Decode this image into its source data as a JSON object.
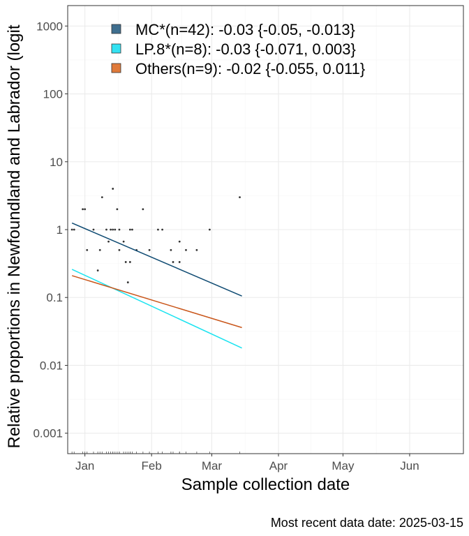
{
  "chart_data": {
    "type": "scatter",
    "xlabel": "Sample collection date",
    "ylabel": "Relative proportions in Newfoundland and Labrador (logit",
    "caption": "Most recent data date: 2025-03-15",
    "y_scale": "log10",
    "ylim": [
      0.0005,
      2000
    ],
    "xlim": [
      "2024-12-24",
      "2025-06-26"
    ],
    "grid": true,
    "legend_position": "top-left-inside",
    "x_ticks": [
      {
        "date": "2025-01-01",
        "label": "Jan"
      },
      {
        "date": "2025-02-01",
        "label": "Feb"
      },
      {
        "date": "2025-03-01",
        "label": "Mar"
      },
      {
        "date": "2025-04-01",
        "label": "Apr"
      },
      {
        "date": "2025-05-01",
        "label": "May"
      },
      {
        "date": "2025-06-01",
        "label": "Jun"
      }
    ],
    "y_ticks": [
      {
        "value": 1000,
        "label": "1000"
      },
      {
        "value": 100,
        "label": "100"
      },
      {
        "value": 10,
        "label": "10"
      },
      {
        "value": 1,
        "label": "1"
      },
      {
        "value": 0.1,
        "label": "0.1"
      },
      {
        "value": 0.01,
        "label": "0.01"
      },
      {
        "value": 0.001,
        "label": "0.001"
      }
    ],
    "legend": [
      {
        "label": "MC*(n=42): -0.03 {-0.05, -0.013}",
        "color": "#3f6f8f"
      },
      {
        "label": "LP.8*(n=8): -0.03 {-0.071, 0.003}",
        "color": "#33e2f2"
      },
      {
        "label": "Others(n=9): -0.02 {-0.055, 0.011}",
        "color": "#e07a3a"
      }
    ],
    "series": [
      {
        "color": "#0e4a72",
        "fit": [
          {
            "x": "2024-12-26",
            "y": 1.25
          },
          {
            "x": "2025-03-15",
            "y": 0.105
          }
        ]
      },
      {
        "color": "#1ae3f0",
        "fit": [
          {
            "x": "2024-12-26",
            "y": 0.26
          },
          {
            "x": "2025-03-15",
            "y": 0.018
          }
        ]
      },
      {
        "color": "#c9561a",
        "fit": [
          {
            "x": "2024-12-26",
            "y": 0.21
          },
          {
            "x": "2025-03-15",
            "y": 0.036
          }
        ]
      }
    ],
    "points": [
      {
        "x": "2024-12-26",
        "y": 1
      },
      {
        "x": "2024-12-27",
        "y": 1
      },
      {
        "x": "2024-12-31",
        "y": 2
      },
      {
        "x": "2025-01-01",
        "y": 2
      },
      {
        "x": "2025-01-02",
        "y": 0.5
      },
      {
        "x": "2025-01-05",
        "y": 1
      },
      {
        "x": "2025-01-07",
        "y": 0.25
      },
      {
        "x": "2025-01-08",
        "y": 0.5
      },
      {
        "x": "2025-01-09",
        "y": 3
      },
      {
        "x": "2025-01-11",
        "y": 1
      },
      {
        "x": "2025-01-12",
        "y": 0.667
      },
      {
        "x": "2025-01-13",
        "y": 1
      },
      {
        "x": "2025-01-14",
        "y": 1
      },
      {
        "x": "2025-01-14",
        "y": 4
      },
      {
        "x": "2025-01-15",
        "y": 1
      },
      {
        "x": "2025-01-16",
        "y": 2
      },
      {
        "x": "2025-01-17",
        "y": 0.5
      },
      {
        "x": "2025-01-17",
        "y": 1
      },
      {
        "x": "2025-01-19",
        "y": 0.667
      },
      {
        "x": "2025-01-20",
        "y": 0.333
      },
      {
        "x": "2025-01-21",
        "y": 0.167
      },
      {
        "x": "2025-01-22",
        "y": 1
      },
      {
        "x": "2025-01-22",
        "y": 0.333
      },
      {
        "x": "2025-01-23",
        "y": 1
      },
      {
        "x": "2025-01-25",
        "y": 0.5
      },
      {
        "x": "2025-01-28",
        "y": 2
      },
      {
        "x": "2025-01-31",
        "y": 0.5
      },
      {
        "x": "2025-02-04",
        "y": 1
      },
      {
        "x": "2025-02-06",
        "y": 1
      },
      {
        "x": "2025-02-10",
        "y": 0.5
      },
      {
        "x": "2025-02-11",
        "y": 0.333
      },
      {
        "x": "2025-02-14",
        "y": 0.333
      },
      {
        "x": "2025-02-14",
        "y": 0.667
      },
      {
        "x": "2025-02-17",
        "y": 0.5
      },
      {
        "x": "2025-02-22",
        "y": 0.5
      },
      {
        "x": "2025-02-28",
        "y": 1
      },
      {
        "x": "2025-03-14",
        "y": 3
      }
    ]
  }
}
